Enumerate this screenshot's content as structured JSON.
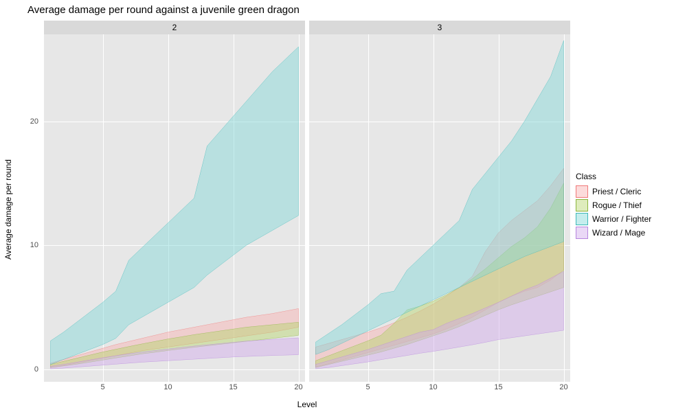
{
  "title": "Average damage per round against a juvenile green dragon",
  "xlabel": "Level",
  "ylabel": "Average damage per round",
  "title_fontsize": 15,
  "axis_fontsize": 12,
  "tick_fontsize": 11,
  "background_color": "#ffffff",
  "panel_bg": "#e7e7e7",
  "grid_color": "#ffffff",
  "strip_bg": "#d9d9d9",
  "tick_color": "#4d4d4d",
  "xlim": [
    0.5,
    20.5
  ],
  "ylim": [
    -1,
    27
  ],
  "xticks": [
    5,
    10,
    15,
    20
  ],
  "yticks": [
    0,
    10,
    20
  ],
  "legend_title": "Class",
  "classes": [
    {
      "name": "Priest / Cleric",
      "fill": "#f8b0b0",
      "stroke": "#f07878",
      "alpha": 0.45
    },
    {
      "name": "Rogue / Thief",
      "fill": "#b6d46a",
      "stroke": "#8ab43c",
      "alpha": 0.45
    },
    {
      "name": "Warrior / Fighter",
      "fill": "#7fd6d6",
      "stroke": "#3db8b8",
      "alpha": 0.45
    },
    {
      "name": "Wizard / Mage",
      "fill": "#d1a8ea",
      "stroke": "#b684de",
      "alpha": 0.45
    }
  ],
  "x": [
    1,
    2,
    3,
    4,
    5,
    6,
    7,
    8,
    9,
    10,
    11,
    12,
    13,
    14,
    15,
    16,
    17,
    18,
    19,
    20
  ],
  "facets": [
    {
      "label": "2",
      "series": {
        "Warrior / Fighter": {
          "low": [
            0.4,
            0.8,
            1.2,
            1.6,
            2.0,
            2.5,
            3.6,
            4.2,
            4.8,
            5.4,
            6.0,
            6.6,
            7.6,
            8.4,
            9.2,
            10.0,
            10.6,
            11.2,
            11.8,
            12.4
          ],
          "high": [
            2.3,
            3.0,
            3.8,
            4.6,
            5.4,
            6.3,
            8.8,
            9.8,
            10.8,
            11.8,
            12.8,
            13.8,
            18.0,
            19.2,
            20.4,
            21.6,
            22.8,
            24.0,
            25.0,
            26.0
          ]
        },
        "Priest / Cleric": {
          "low": [
            0.15,
            0.3,
            0.5,
            0.7,
            0.9,
            1.1,
            1.3,
            1.5,
            1.65,
            1.8,
            1.95,
            2.1,
            2.25,
            2.4,
            2.55,
            2.7,
            2.85,
            3.0,
            3.2,
            3.4
          ],
          "high": [
            0.5,
            0.8,
            1.1,
            1.4,
            1.7,
            2.0,
            2.25,
            2.5,
            2.75,
            3.0,
            3.2,
            3.4,
            3.6,
            3.8,
            4.0,
            4.2,
            4.35,
            4.5,
            4.7,
            4.9
          ]
        },
        "Rogue / Thief": {
          "low": [
            0.15,
            0.28,
            0.42,
            0.58,
            0.75,
            0.92,
            1.08,
            1.25,
            1.38,
            1.52,
            1.65,
            1.78,
            1.9,
            2.02,
            2.14,
            2.26,
            2.38,
            2.5,
            2.62,
            2.74
          ],
          "high": [
            0.4,
            0.65,
            0.9,
            1.15,
            1.4,
            1.62,
            1.84,
            2.05,
            2.25,
            2.45,
            2.62,
            2.8,
            2.95,
            3.1,
            3.25,
            3.4,
            3.5,
            3.6,
            3.7,
            3.8
          ]
        },
        "Wizard / Mage": {
          "low": [
            0.05,
            0.1,
            0.18,
            0.26,
            0.34,
            0.42,
            0.5,
            0.58,
            0.64,
            0.7,
            0.76,
            0.82,
            0.88,
            0.94,
            1.0,
            1.04,
            1.08,
            1.12,
            1.15,
            1.18
          ],
          "high": [
            0.25,
            0.4,
            0.58,
            0.76,
            0.94,
            1.1,
            1.26,
            1.4,
            1.52,
            1.64,
            1.76,
            1.88,
            1.98,
            2.08,
            2.18,
            2.28,
            2.35,
            2.42,
            2.48,
            2.54
          ]
        }
      }
    },
    {
      "label": "3",
      "series": {
        "Warrior / Fighter": {
          "low": [
            1.2,
            1.6,
            2.1,
            2.6,
            3.1,
            3.6,
            4.1,
            4.6,
            5.1,
            5.6,
            6.1,
            6.6,
            7.1,
            7.6,
            8.1,
            8.6,
            9.1,
            9.5,
            9.9,
            10.3
          ],
          "high": [
            2.2,
            2.9,
            3.6,
            4.4,
            5.2,
            6.1,
            6.3,
            8.0,
            9.0,
            10.0,
            11.0,
            12.0,
            14.5,
            15.8,
            17.1,
            18.4,
            20.0,
            21.8,
            23.6,
            26.5
          ]
        },
        "Priest / Cleric": {
          "low": [
            0.2,
            0.45,
            0.75,
            1.05,
            1.35,
            1.65,
            1.95,
            2.25,
            2.55,
            2.85,
            3.25,
            3.7,
            4.2,
            4.8,
            5.4,
            5.9,
            6.3,
            6.6,
            7.2,
            8.0
          ],
          "high": [
            1.8,
            2.1,
            2.4,
            2.7,
            3.0,
            3.35,
            3.75,
            4.2,
            4.7,
            5.25,
            5.9,
            6.6,
            7.5,
            9.5,
            11.0,
            12.0,
            12.8,
            13.6,
            14.8,
            16.2
          ]
        },
        "Rogue / Thief": {
          "low": [
            0.15,
            0.4,
            0.65,
            0.9,
            1.15,
            1.4,
            1.7,
            2.0,
            2.35,
            2.7,
            3.05,
            3.45,
            3.9,
            4.35,
            4.8,
            5.2,
            5.55,
            5.9,
            6.25,
            6.6
          ],
          "high": [
            0.7,
            1.1,
            1.5,
            1.9,
            2.3,
            2.75,
            3.7,
            4.8,
            5.1,
            5.5,
            6.0,
            6.6,
            7.3,
            8.1,
            9.0,
            9.9,
            10.6,
            11.5,
            13.0,
            15.0
          ]
        },
        "Wizard / Mage": {
          "low": [
            0.05,
            0.15,
            0.3,
            0.45,
            0.6,
            0.78,
            0.95,
            1.12,
            1.3,
            1.45,
            1.62,
            1.8,
            1.98,
            2.18,
            2.4,
            2.55,
            2.7,
            2.85,
            3.0,
            3.15
          ],
          "high": [
            0.4,
            0.7,
            1.0,
            1.3,
            1.6,
            1.95,
            2.3,
            2.65,
            3.0,
            3.2,
            3.7,
            4.1,
            4.5,
            4.95,
            5.4,
            5.9,
            6.4,
            6.8,
            7.35,
            7.9
          ]
        }
      }
    }
  ]
}
